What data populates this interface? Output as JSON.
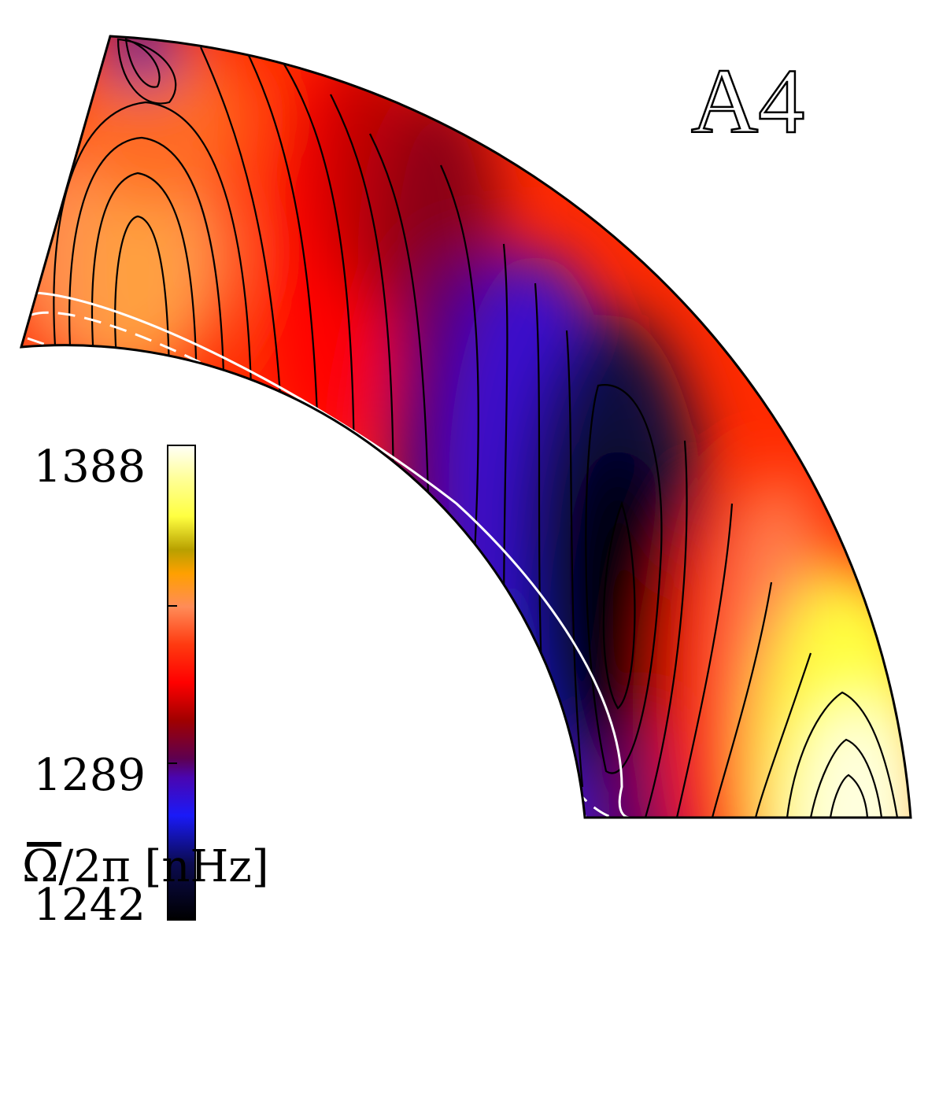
{
  "panel_label": "A4",
  "colorbar": {
    "title": "Ω/2π [nHz]",
    "ticks": [
      {
        "label": "1388",
        "value": 1388
      },
      {
        "label": "1289",
        "value": 1289
      },
      {
        "label": "1242",
        "value": 1242
      }
    ],
    "min": 1242,
    "max": 1388,
    "colors": {
      "0.00": "#000000",
      "0.12": "#0b0b50",
      "0.22": "#1a1af8",
      "0.30": "#4a05b0",
      "0.34": "#5e0050",
      "0.42": "#a00000",
      "0.50": "#ff0000",
      "0.58": "#ff3a10",
      "0.66": "#ff8c58",
      "0.73": "#ffa000",
      "0.78": "#b8a000",
      "0.85": "#ffff40",
      "0.93": "#ffff98",
      "1.00": "#fffff8"
    }
  },
  "overlay_lines": {
    "solid": "white solid",
    "dashed": "white dashed",
    "dash_dot": "white dash-dot"
  }
}
